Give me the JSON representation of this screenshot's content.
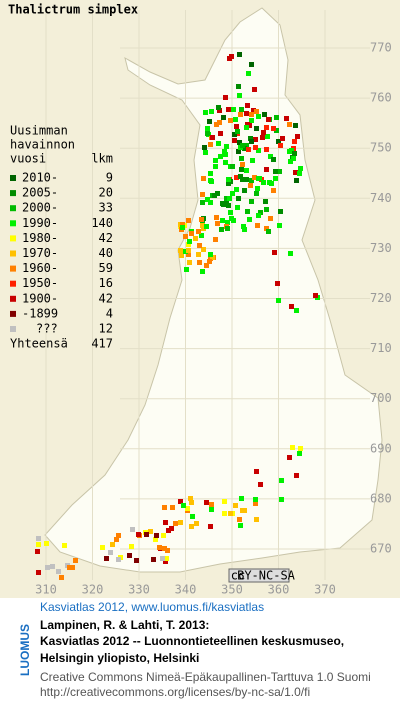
{
  "title": "Thalictrum simplex",
  "legend": {
    "heading": [
      "Uusimman",
      "havainnon",
      "vuosi"
    ],
    "count_heading": "lkm",
    "rows": [
      {
        "label": "2010-",
        "count": 9,
        "color": "#006400"
      },
      {
        "label": "2005-",
        "count": 20,
        "color": "#008c00"
      },
      {
        "label": "2000-",
        "count": 33,
        "color": "#00bb00"
      },
      {
        "label": "1990-",
        "count": 140,
        "color": "#00f000"
      },
      {
        "label": "1980-",
        "count": 42,
        "color": "#ffff00"
      },
      {
        "label": "1970-",
        "count": 40,
        "color": "#ffc000"
      },
      {
        "label": "1960-",
        "count": 59,
        "color": "#ff8000"
      },
      {
        "label": "1950-",
        "count": 16,
        "color": "#ff2000"
      },
      {
        "label": "1900-",
        "count": 42,
        "color": "#c80000"
      },
      {
        "label": "-1899",
        "count": 4,
        "color": "#800000"
      },
      {
        "label": "???",
        "count": 12,
        "color": "#c0c0c0"
      }
    ],
    "total_label": "Yhteensä",
    "total": 417
  },
  "grid": {
    "y_labels": [
      770,
      760,
      750,
      740,
      730,
      720,
      710,
      700,
      690,
      680,
      670
    ],
    "x_labels": [
      310,
      320,
      330,
      340,
      350,
      360,
      370
    ]
  },
  "license_badge": {
    "cc": "cc",
    "text": "BY-NC-SA"
  },
  "brand": "LUOMUS",
  "credits": {
    "title": "Kasviatlas 2012, www.luomus.fi/kasviatlas",
    "citation": [
      "Lampinen, R. & Lahti, T. 2013:",
      "Kasviatlas 2012 -- Luonnontieteellinen keskusmuseo,",
      "Helsingin yliopisto, Helsinki"
    ],
    "license": [
      "Creative Commons Nimeä-Epäkaupallinen-Tarttuva 1.0 Suomi",
      "http://creativecommons.org/licenses/by-nc-sa/1.0/fi"
    ]
  }
}
